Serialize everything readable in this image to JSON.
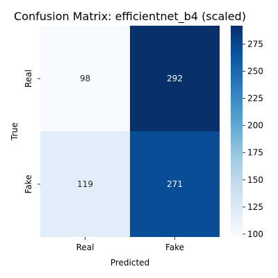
{
  "chart_data": {
    "type": "heatmap",
    "title": "Confusion Matrix: efficientnet_b4 (scaled)",
    "xlabel": "Predicted",
    "ylabel": "True",
    "x_categories": [
      "Real",
      "Fake"
    ],
    "y_categories": [
      "Real",
      "Fake"
    ],
    "values": [
      [
        98,
        292
      ],
      [
        119,
        271
      ]
    ],
    "colormap": "Blues",
    "colorbar": {
      "range": [
        98,
        292
      ],
      "ticks": [
        100,
        125,
        150,
        175,
        200,
        225,
        250,
        275
      ]
    },
    "colors": {
      "low": "#f7fbff",
      "high": "#08306b",
      "text_dark_cell": "#ffffff",
      "text_light_cell": "#262626"
    }
  }
}
